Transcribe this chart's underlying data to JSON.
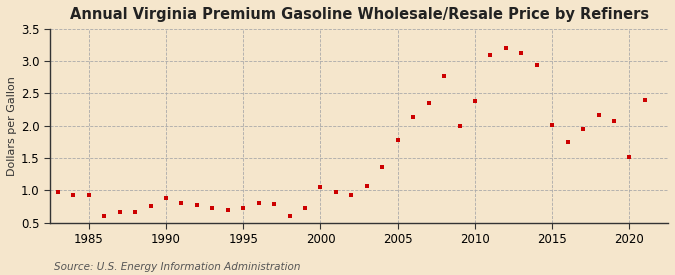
{
  "title": "Annual Virginia Premium Gasoline Wholesale/Resale Price by Refiners",
  "ylabel": "Dollars per Gallon",
  "source": "Source: U.S. Energy Information Administration",
  "background_color": "#f5e6cc",
  "marker_color": "#cc0000",
  "years": [
    1983,
    1984,
    1985,
    1986,
    1987,
    1988,
    1989,
    1990,
    1991,
    1992,
    1993,
    1994,
    1995,
    1996,
    1997,
    1998,
    1999,
    2000,
    2001,
    2002,
    2003,
    2004,
    2005,
    2006,
    2007,
    2008,
    2009,
    2010,
    2011,
    2012,
    2013,
    2014,
    2015,
    2016,
    2017,
    2018,
    2019,
    2020,
    2021
  ],
  "values": [
    0.98,
    0.93,
    0.92,
    0.61,
    0.66,
    0.67,
    0.76,
    0.88,
    0.8,
    0.78,
    0.72,
    0.7,
    0.72,
    0.8,
    0.79,
    0.61,
    0.72,
    1.05,
    0.97,
    0.93,
    1.07,
    1.36,
    1.78,
    2.14,
    2.35,
    2.77,
    2.0,
    2.38,
    3.09,
    3.2,
    3.13,
    2.94,
    2.01,
    1.74,
    1.95,
    2.17,
    2.07,
    1.51,
    2.4
  ],
  "ylim": [
    0.5,
    3.5
  ],
  "yticks": [
    0.5,
    1.0,
    1.5,
    2.0,
    2.5,
    3.0,
    3.5
  ],
  "xlim": [
    1982.5,
    2022.5
  ],
  "xticks": [
    1985,
    1990,
    1995,
    2000,
    2005,
    2010,
    2015,
    2020
  ],
  "title_fontsize": 10.5,
  "tick_fontsize": 8.5,
  "ylabel_fontsize": 8,
  "source_fontsize": 7.5,
  "marker_size": 12
}
